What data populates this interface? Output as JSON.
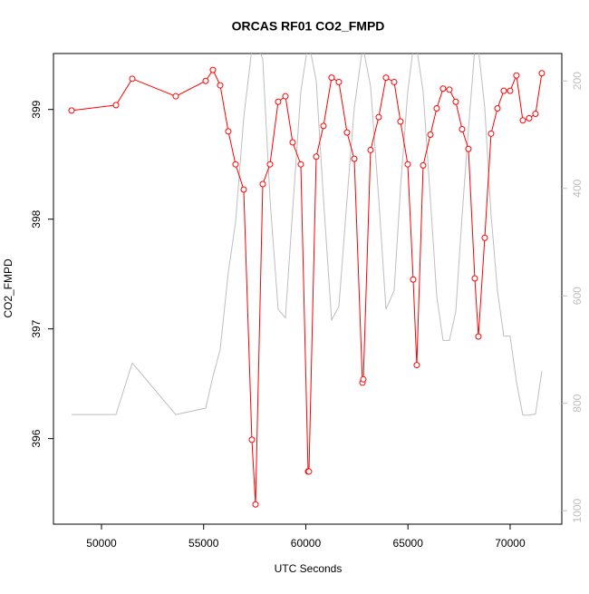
{
  "chart_data": {
    "type": "line",
    "title": "ORCAS RF01 CO2_FMPD",
    "x_label": "UTC Seconds",
    "y_label": "CO2_FMPD",
    "x": [
      48537,
      50710,
      51508,
      53636,
      55100,
      55455,
      55809,
      56208,
      56563,
      56962,
      57361,
      57539,
      57894,
      58248,
      58647,
      59002,
      59357,
      59756,
      60111,
      60155,
      60510,
      60865,
      61264,
      61619,
      62018,
      62373,
      62772,
      62816,
      63171,
      63570,
      63925,
      64324,
      64634,
      64989,
      65255,
      65432,
      65743,
      66098,
      66408,
      66718,
      67029,
      67339,
      67650,
      67960,
      68271,
      68448,
      68758,
      69069,
      69379,
      69690,
      70000,
      70310,
      70621,
      70931,
      71242,
      71552
    ],
    "series": [
      {
        "color": "#ff0000",
        "values": [
          398.99,
          399.04,
          399.28,
          399.12,
          399.26,
          399.36,
          399.22,
          398.8,
          398.5,
          398.27,
          395.99,
          395.4,
          398.32,
          398.5,
          399.07,
          399.12,
          398.7,
          398.5,
          395.7,
          395.7,
          398.57,
          398.85,
          399.29,
          399.25,
          398.79,
          398.55,
          396.51,
          396.54,
          398.63,
          398.93,
          399.29,
          399.25,
          398.89,
          398.5,
          397.45,
          396.67,
          398.49,
          398.77,
          399.01,
          399.19,
          399.18,
          399.07,
          398.82,
          398.64,
          397.46,
          396.93,
          397.83,
          398.78,
          399.01,
          399.17,
          399.17,
          399.31,
          398.9,
          398.92,
          398.96,
          399.33
        ]
      },
      {
        "color": "#bebebe",
        "axis": "y2",
        "values": [
          821,
          821,
          725,
          821,
          809,
          750,
          700,
          556,
          463,
          269,
          140,
          120,
          160,
          420,
          625,
          641,
          440,
          220,
          130,
          130,
          200,
          420,
          645,
          620,
          420,
          250,
          140,
          140,
          210,
          420,
          625,
          590,
          400,
          220,
          140,
          140,
          220,
          420,
          600,
          683,
          683,
          630,
          450,
          290,
          140,
          140,
          250,
          450,
          590,
          675,
          675,
          760,
          822,
          822,
          820,
          740
        ]
      }
    ],
    "xlim": [
      47650,
      72530
    ],
    "xticks": [
      50000,
      55000,
      60000,
      65000,
      70000
    ],
    "ylim": [
      395.22,
      399.51
    ],
    "yticks": [
      396,
      397,
      398,
      399
    ],
    "y2lim": [
      1025,
      149
    ],
    "y2ticks": [
      200,
      400,
      600,
      800,
      1000
    ]
  }
}
